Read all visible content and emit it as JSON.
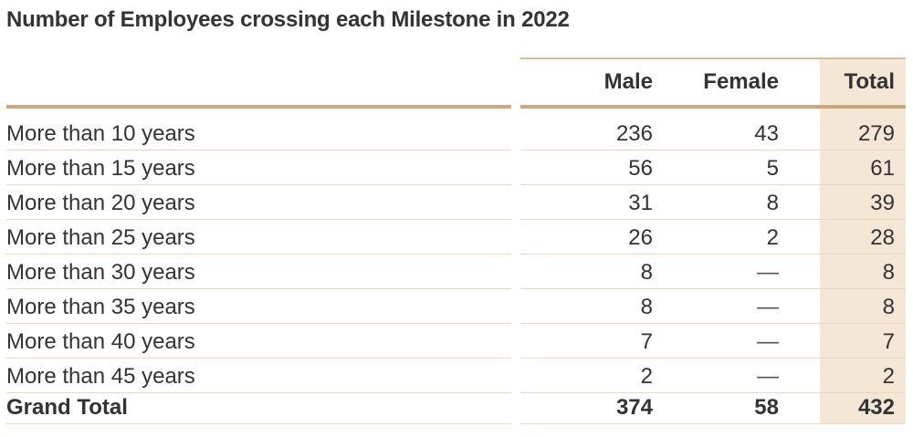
{
  "title": "Number of Employees crossing each Milestone in 2022",
  "columns": {
    "male": "Male",
    "female": "Female",
    "total": "Total"
  },
  "rows": [
    {
      "label": "More than 10 years",
      "male": "236",
      "female": "43",
      "total": "279"
    },
    {
      "label": "More than 15 years",
      "male": "56",
      "female": "5",
      "total": "61"
    },
    {
      "label": "More than 20 years",
      "male": "31",
      "female": "8",
      "total": "39"
    },
    {
      "label": "More than 25 years",
      "male": "26",
      "female": "2",
      "total": "28"
    },
    {
      "label": "More than 30 years",
      "male": "8",
      "female": "—",
      "total": "8"
    },
    {
      "label": "More than 35 years",
      "male": "8",
      "female": "—",
      "total": "8"
    },
    {
      "label": "More than 40 years",
      "male": "7",
      "female": "—",
      "total": "7"
    },
    {
      "label": "More than 45 years",
      "male": "2",
      "female": "—",
      "total": "2"
    }
  ],
  "grand_total": {
    "label": "Grand Total",
    "male": "374",
    "female": "58",
    "total": "432"
  },
  "colors": {
    "accent_line": "#cda77a",
    "total_column_bg": "#f4e7d6",
    "row_separator": "#ead9c2"
  }
}
